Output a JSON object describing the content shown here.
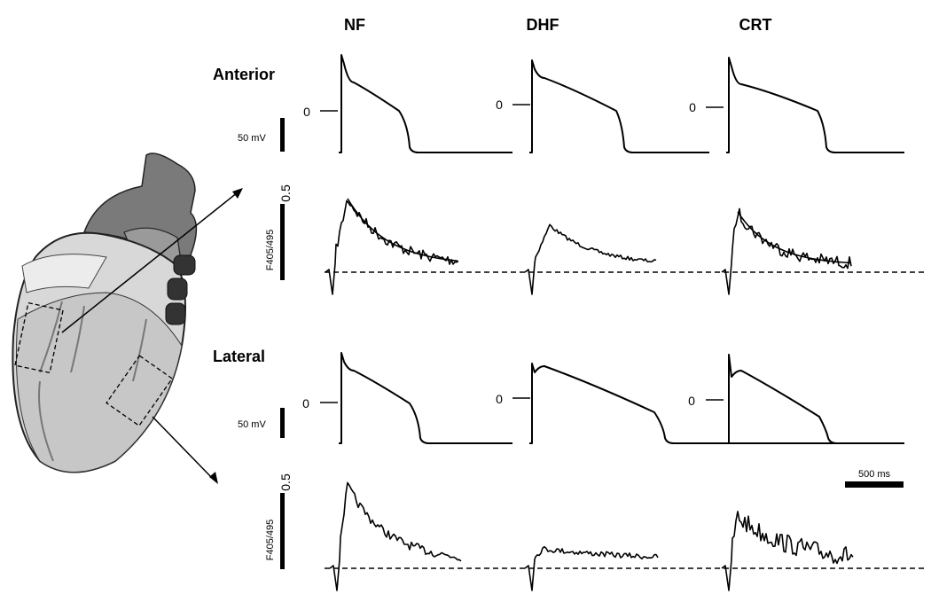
{
  "columns": [
    "NF",
    "DHF",
    "CRT"
  ],
  "rows": [
    "Anterior",
    "Lateral"
  ],
  "zero_labels": [
    "0",
    "0",
    "0",
    "0",
    "0",
    "0"
  ],
  "voltage_scale": [
    "50 mV",
    "50 mV"
  ],
  "fluorescence_scale": [
    "0.5",
    "0.5"
  ],
  "fluorescence_axis": [
    "F405/495",
    "F405/495"
  ],
  "time_scale": "500 ms"
}
